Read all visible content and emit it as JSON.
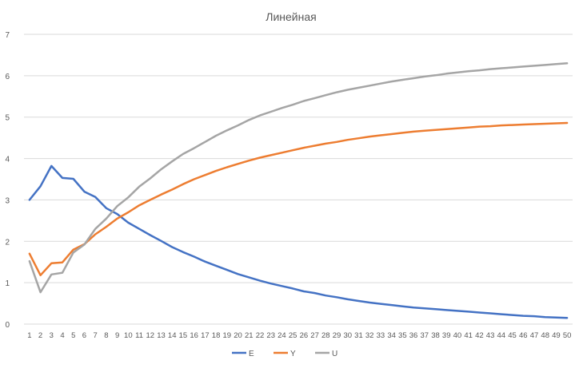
{
  "chart_data": {
    "type": "line",
    "title": "Линейная",
    "xlabel": "",
    "ylabel": "",
    "ylim": [
      0,
      7
    ],
    "yticks": [
      0,
      1,
      2,
      3,
      4,
      5,
      6,
      7
    ],
    "grid": true,
    "legend": "bottom",
    "categories": [
      "1",
      "2",
      "3",
      "4",
      "5",
      "6",
      "7",
      "8",
      "9",
      "10",
      "11",
      "12",
      "13",
      "14",
      "15",
      "16",
      "17",
      "18",
      "19",
      "20",
      "21",
      "22",
      "23",
      "24",
      "25",
      "26",
      "27",
      "28",
      "29",
      "30",
      "31",
      "32",
      "33",
      "34",
      "35",
      "36",
      "37",
      "38",
      "39",
      "40",
      "41",
      "42",
      "43",
      "44",
      "45",
      "46",
      "47",
      "48",
      "49",
      "50"
    ],
    "series": [
      {
        "name": "E",
        "color": "#4472C4",
        "values": [
          3.0,
          3.33,
          3.82,
          3.53,
          3.51,
          3.2,
          3.07,
          2.8,
          2.66,
          2.45,
          2.3,
          2.15,
          2.01,
          1.86,
          1.74,
          1.63,
          1.51,
          1.41,
          1.31,
          1.21,
          1.13,
          1.05,
          0.98,
          0.92,
          0.86,
          0.79,
          0.75,
          0.69,
          0.65,
          0.6,
          0.56,
          0.52,
          0.49,
          0.46,
          0.43,
          0.4,
          0.38,
          0.36,
          0.34,
          0.32,
          0.3,
          0.28,
          0.26,
          0.24,
          0.22,
          0.2,
          0.19,
          0.17,
          0.16,
          0.15
        ]
      },
      {
        "name": "Y",
        "color": "#ED7D31",
        "values": [
          1.7,
          1.18,
          1.47,
          1.49,
          1.8,
          1.93,
          2.17,
          2.35,
          2.55,
          2.7,
          2.87,
          3.0,
          3.13,
          3.25,
          3.38,
          3.5,
          3.6,
          3.7,
          3.79,
          3.87,
          3.95,
          4.02,
          4.08,
          4.14,
          4.2,
          4.26,
          4.31,
          4.36,
          4.4,
          4.45,
          4.49,
          4.53,
          4.56,
          4.59,
          4.62,
          4.65,
          4.67,
          4.69,
          4.71,
          4.73,
          4.75,
          4.77,
          4.78,
          4.8,
          4.81,
          4.82,
          4.83,
          4.84,
          4.85,
          4.86
        ]
      },
      {
        "name": "U",
        "color": "#A5A5A5",
        "values": [
          1.52,
          0.77,
          1.2,
          1.24,
          1.73,
          1.92,
          2.3,
          2.55,
          2.85,
          3.06,
          3.32,
          3.52,
          3.74,
          3.93,
          4.11,
          4.25,
          4.4,
          4.55,
          4.68,
          4.8,
          4.93,
          5.04,
          5.13,
          5.22,
          5.3,
          5.39,
          5.46,
          5.53,
          5.6,
          5.66,
          5.71,
          5.76,
          5.81,
          5.86,
          5.9,
          5.94,
          5.98,
          6.01,
          6.05,
          6.08,
          6.11,
          6.13,
          6.16,
          6.18,
          6.2,
          6.22,
          6.24,
          6.26,
          6.28,
          6.3
        ]
      }
    ]
  }
}
